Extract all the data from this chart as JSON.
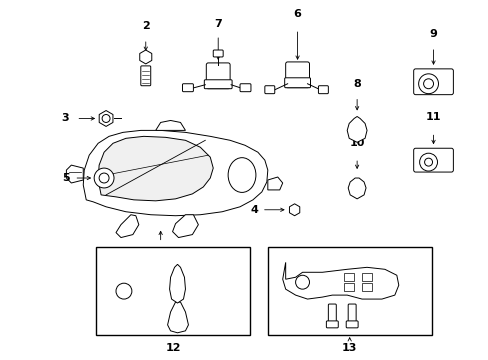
{
  "background_color": "#ffffff",
  "fig_width": 4.89,
  "fig_height": 3.6,
  "dpi": 100
}
